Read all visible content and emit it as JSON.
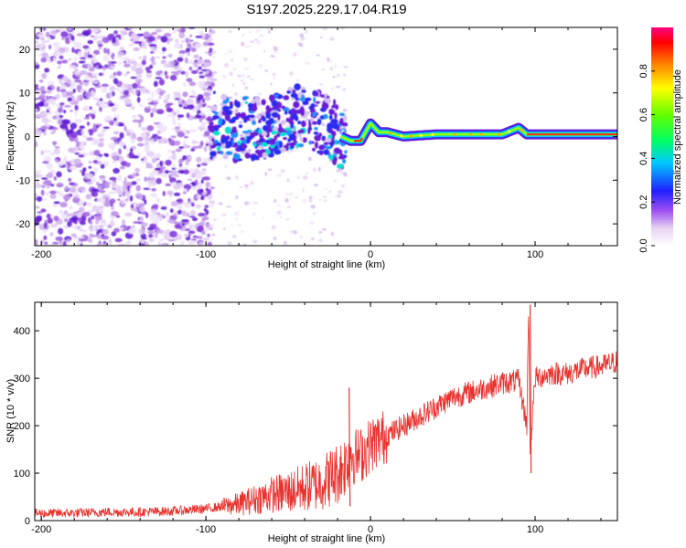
{
  "title": "S197.2025.229.17.04.R19",
  "chart_data": [
    {
      "type": "heatmap",
      "name": "spectrogram",
      "xlabel": "Height of straight line (km)",
      "ylabel": "Frequency (Hz)",
      "xlim": [
        -204,
        150
      ],
      "ylim": [
        -25,
        25
      ],
      "xticks": [
        -200,
        -100,
        0,
        100
      ],
      "yticks": [
        -20,
        -10,
        0,
        10,
        20
      ],
      "colorbar": {
        "label": "Normalized spectral amplitude",
        "range": [
          0.0,
          1.0
        ],
        "ticks": [
          "0.0",
          "0.2",
          "0.4",
          "0.6",
          "0.8"
        ],
        "tick_values": [
          0,
          0.2,
          0.4,
          0.6,
          0.8
        ]
      },
      "ridge": {
        "x": [
          -95,
          -85,
          -75,
          -65,
          -55,
          -45,
          -35,
          -25,
          -18,
          -12,
          -6,
          0,
          5,
          10,
          20,
          40,
          60,
          80,
          90,
          95,
          100,
          120,
          150
        ],
        "freq": [
          4,
          1,
          2,
          2,
          3,
          5,
          4,
          2,
          0,
          -1,
          -1,
          3,
          1,
          1,
          0,
          0.5,
          0.5,
          0.5,
          2,
          0.5,
          0.5,
          0.5,
          0.5
        ]
      }
    },
    {
      "type": "line",
      "name": "snr",
      "xlabel": "Height of straight line (km)",
      "ylabel": "SNR (10 * v/v)",
      "xlim": [
        -204,
        150
      ],
      "ylim": [
        0,
        460
      ],
      "xticks": [
        -200,
        -100,
        0,
        100
      ],
      "yticks": [
        0,
        100,
        200,
        300,
        400
      ],
      "color": "#e8322d",
      "series": [
        {
          "name": "SNR",
          "x": [
            -204,
            -180,
            -160,
            -140,
            -120,
            -100,
            -90,
            -80,
            -70,
            -60,
            -50,
            -40,
            -30,
            -20,
            -15,
            -12,
            -10,
            -5,
            0,
            5,
            10,
            15,
            20,
            30,
            40,
            50,
            60,
            70,
            80,
            90,
            95,
            96,
            97,
            100,
            110,
            120,
            130,
            140,
            150
          ],
          "values": [
            15,
            16,
            18,
            18,
            20,
            25,
            30,
            35,
            45,
            55,
            60,
            70,
            80,
            100,
            120,
            150,
            135,
            140,
            160,
            170,
            180,
            190,
            200,
            220,
            240,
            260,
            270,
            280,
            290,
            295,
            200,
            450,
            150,
            300,
            310,
            310,
            320,
            325,
            335
          ]
        }
      ],
      "spikes": [
        {
          "x": -13,
          "values": [
            280,
            30
          ]
        },
        {
          "x": 97,
          "values": [
            455,
            100
          ]
        }
      ]
    }
  ]
}
